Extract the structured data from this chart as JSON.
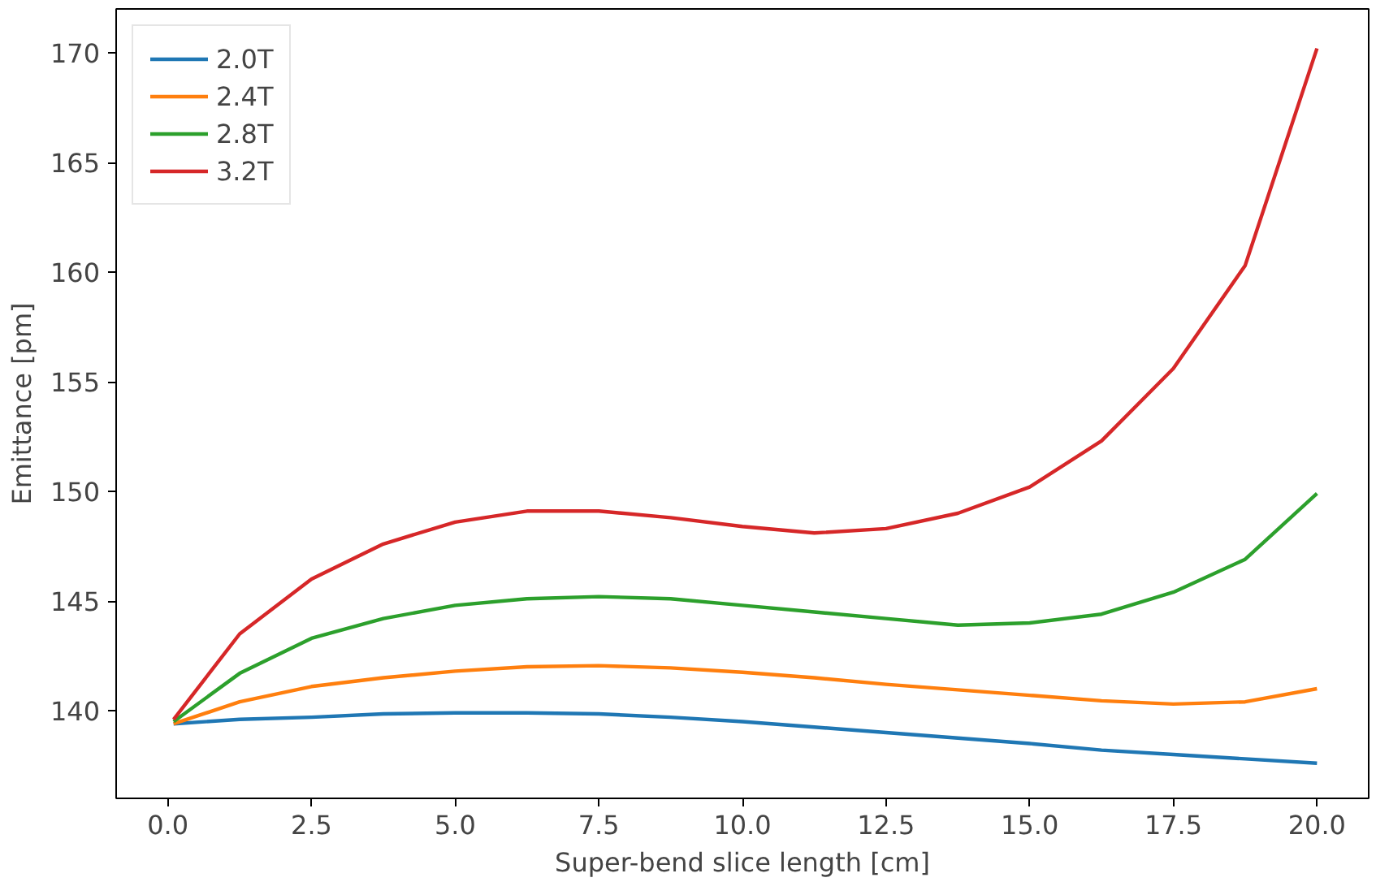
{
  "chart_data": {
    "type": "line",
    "xlabel": "Super-bend slice length [cm]",
    "ylabel": "Emittance [pm]",
    "x": [
      0.1,
      1.25,
      2.5,
      3.75,
      5,
      6.25,
      7.5,
      8.75,
      10,
      11.25,
      12.5,
      13.75,
      15,
      16.25,
      17.5,
      18.75,
      20
    ],
    "series": [
      {
        "name": "2.0T",
        "color": "#1f77b4",
        "values": [
          139.4,
          139.6,
          139.7,
          139.85,
          139.9,
          139.9,
          139.85,
          139.7,
          139.5,
          139.25,
          139.0,
          138.75,
          138.5,
          138.2,
          138.0,
          137.8,
          137.6
        ]
      },
      {
        "name": "2.4T",
        "color": "#ff7f0e",
        "values": [
          139.4,
          140.4,
          141.1,
          141.5,
          141.8,
          142.0,
          142.05,
          141.95,
          141.75,
          141.5,
          141.2,
          140.95,
          140.7,
          140.45,
          140.3,
          140.4,
          141.0
        ]
      },
      {
        "name": "2.8T",
        "color": "#2ca02c",
        "values": [
          139.5,
          141.7,
          143.3,
          144.2,
          144.8,
          145.1,
          145.2,
          145.1,
          144.8,
          144.5,
          144.2,
          143.9,
          144.0,
          144.4,
          145.4,
          146.9,
          149.9
        ]
      },
      {
        "name": "3.2T",
        "color": "#d62728",
        "values": [
          139.6,
          143.5,
          146.0,
          147.6,
          148.6,
          149.1,
          149.1,
          148.8,
          148.4,
          148.1,
          148.3,
          149.0,
          150.2,
          152.3,
          155.6,
          160.3,
          170.2
        ]
      }
    ],
    "xlim": [
      -0.9,
      20.9
    ],
    "ylim": [
      136.0,
      172.0
    ],
    "xticks": [
      {
        "value": 0,
        "label": "0.0"
      },
      {
        "value": 2.5,
        "label": "2.5"
      },
      {
        "value": 5,
        "label": "5.0"
      },
      {
        "value": 7.5,
        "label": "7.5"
      },
      {
        "value": 10,
        "label": "10.0"
      },
      {
        "value": 12.5,
        "label": "12.5"
      },
      {
        "value": 15,
        "label": "15.0"
      },
      {
        "value": 17.5,
        "label": "17.5"
      },
      {
        "value": 20,
        "label": "20.0"
      }
    ],
    "yticks": [
      140,
      145,
      150,
      155,
      160,
      165,
      170
    ],
    "grid": false,
    "legend": "top left"
  }
}
